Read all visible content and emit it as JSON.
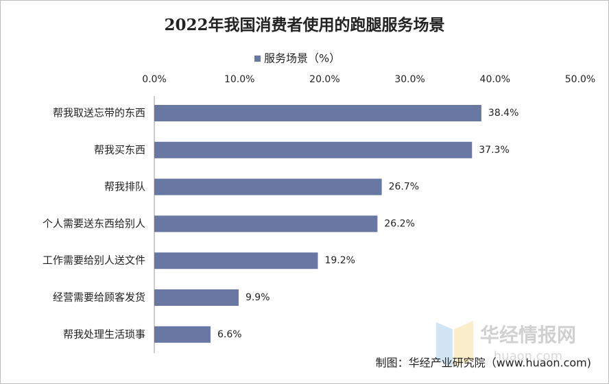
{
  "chart_data": {
    "type": "bar",
    "orientation": "horizontal",
    "title": "2022年我国消费者使用的跑腿服务场景",
    "categories": [
      "帮我取送忘带的东西",
      "帮我买东西",
      "帮我排队",
      "个人需要送东西给别人",
      "工作需要给别人送文件",
      "经营需要给顾客发货",
      "帮我处理生活琐事"
    ],
    "series": [
      {
        "name": "服务场景（%）",
        "color": "#6878a3",
        "values": [
          38.4,
          37.3,
          26.7,
          26.2,
          19.2,
          9.9,
          6.6
        ],
        "value_labels": [
          "38.4%",
          "37.3%",
          "26.7%",
          "26.2%",
          "19.2%",
          "9.9%",
          "6.6%"
        ]
      }
    ],
    "xlim": [
      0,
      50
    ],
    "xticks": [
      {
        "value": 0,
        "label": "0.0%"
      },
      {
        "value": 10,
        "label": "10.0%"
      },
      {
        "value": 20,
        "label": "20.0%"
      },
      {
        "value": 30,
        "label": "30.0%"
      },
      {
        "value": 40,
        "label": "40.0%"
      },
      {
        "value": 50,
        "label": "50.0%"
      }
    ],
    "source": "制图：华经产业研究院（www.huaon.com)",
    "watermark": "华经情报网",
    "watermark_url": "huaon.com"
  }
}
